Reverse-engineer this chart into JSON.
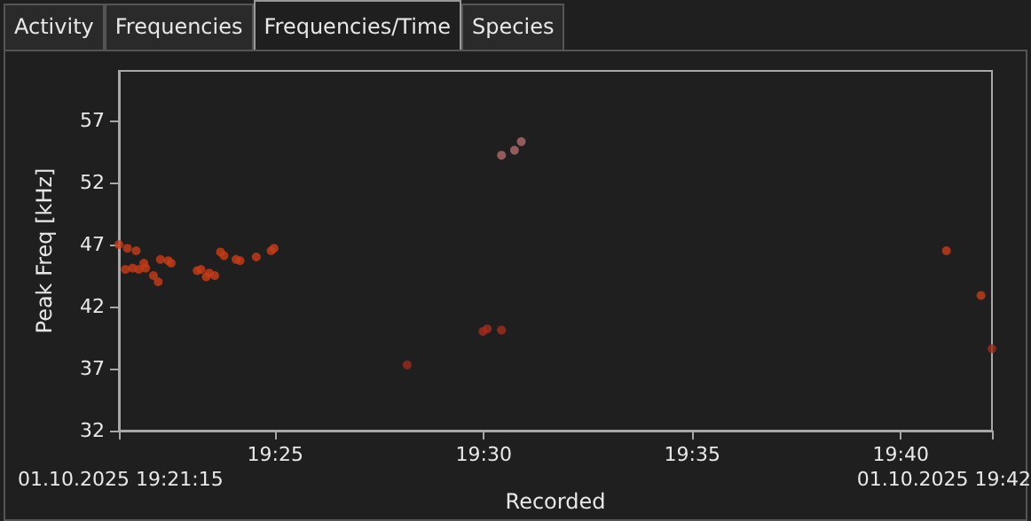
{
  "chart_data": {
    "type": "scatter",
    "annotations": [
      "Activity",
      "Frequencies",
      "Frequencies/Time",
      "Species",
      "01.10.2025 19:21:15",
      "01.10.2025 19:42"
    ],
    "xlabel": "Recorded",
    "ylabel": "Peak Freq [kHz]",
    "x": [
      19.3542,
      19.3568,
      19.3576,
      19.3597,
      19.3611,
      19.3622,
      19.3642,
      19.3649,
      19.368,
      19.3699,
      19.3708,
      19.3739,
      19.3751,
      19.3855,
      19.387,
      19.3891,
      19.3903,
      19.3925,
      19.3948,
      19.3962,
      19.401,
      19.4026,
      19.4091,
      19.415,
      19.4162,
      19.4694,
      19.4997,
      19.5014,
      19.5071,
      19.5071,
      19.5123,
      19.515,
      19.6849,
      19.6987,
      19.7031
    ],
    "values": [
      47.0,
      45.0,
      46.7,
      45.1,
      46.5,
      45.0,
      45.5,
      45.1,
      44.5,
      44.0,
      45.8,
      45.7,
      45.5,
      44.9,
      45.0,
      44.4,
      44.7,
      44.5,
      46.4,
      46.1,
      45.8,
      45.7,
      46.0,
      46.5,
      46.7,
      37.3,
      40.0,
      40.2,
      40.1,
      54.2,
      54.6,
      55.3,
      46.5,
      42.9,
      38.6
    ],
    "colors": [
      "#c83c18",
      "#c83c18",
      "#c83c18",
      "#c83c18",
      "#c83c18",
      "#c83c18",
      "#c83c18",
      "#c83c18",
      "#c83c18",
      "#c83c18",
      "#c83c18",
      "#c83c18",
      "#c83c18",
      "#c83c18",
      "#c83c18",
      "#c83c18",
      "#c83c18",
      "#c83c18",
      "#c83c18",
      "#c83c18",
      "#c83c18",
      "#c83c18",
      "#c83c18",
      "#c83c18",
      "#c83c18",
      "#9c2a1c",
      "#a82c1c",
      "#a82c1c",
      "#a82c1c",
      "#b06a6a",
      "#b06a6a",
      "#b06a6a",
      "#c83c18",
      "#c83c18",
      "#9c2a1c"
    ],
    "marker": "circle",
    "xlim": [
      19.3542,
      19.7031
    ],
    "xticks": [
      {
        "value": 19.3542,
        "label": null
      },
      {
        "value": 19.41667,
        "label": "19:25"
      },
      {
        "value": 19.5,
        "label": "19:30"
      },
      {
        "value": 19.58333,
        "label": "19:35"
      },
      {
        "value": 19.66667,
        "label": "19:40"
      },
      {
        "value": 19.7031,
        "label": null
      }
    ],
    "ylim": [
      32,
      61
    ],
    "yticks": [
      32,
      37,
      42,
      47,
      52,
      57
    ],
    "grid": false
  }
}
